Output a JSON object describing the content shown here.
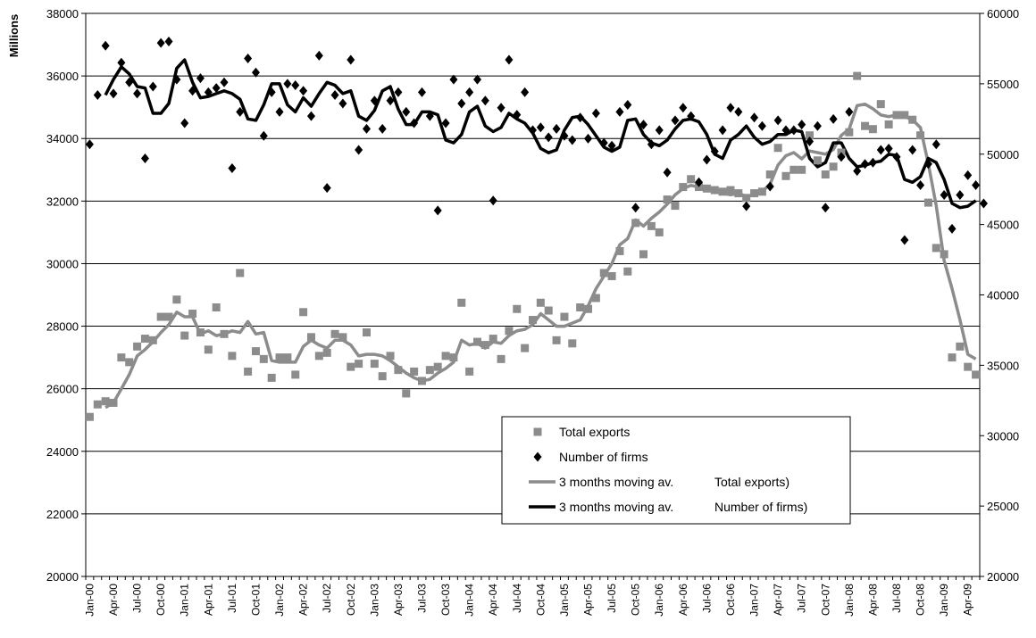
{
  "chart_data": {
    "type": "line",
    "ylabel": "Millions",
    "y_left_lim": [
      20000,
      38000
    ],
    "y_right_lim": [
      20000,
      60000
    ],
    "y_left_ticks": [
      "20000",
      "22000",
      "24000",
      "26000",
      "28000",
      "30000",
      "32000",
      "34000",
      "36000",
      "38000"
    ],
    "y_right_ticks": [
      "20000",
      "25000",
      "30000",
      "35000",
      "40000",
      "45000",
      "50000",
      "55000",
      "60000"
    ],
    "grid": true,
    "legend_position": "center-right inside plot",
    "x_tick_labels": [
      "Jan-00",
      "Apr-00",
      "Jul-00",
      "Oct-00",
      "Jan-01",
      "Apr-01",
      "Jul-01",
      "Oct-01",
      "Jan-02",
      "Apr-02",
      "Jul-02",
      "Oct-02",
      "Jan-03",
      "Apr-03",
      "Jul-03",
      "Oct-03",
      "Jan-04",
      "Apr-04",
      "Jul-04",
      "Oct-04",
      "Jan-05",
      "Apr-05",
      "Jul-05",
      "Oct-05",
      "Jan-06",
      "Apr-06",
      "Jul-06",
      "Oct-06",
      "Jan-07",
      "Apr-07",
      "Jul-07",
      "Oct-07",
      "Jan-08",
      "Apr-08",
      "Jul-08",
      "Oct-08",
      "Jan-09",
      "Apr-09"
    ],
    "series": [
      {
        "name": "Total exports",
        "type": "scatter",
        "axis": "left",
        "marker": "square",
        "color": "#8c8c8c",
        "values": [
          25100,
          25500,
          25600,
          25550,
          27000,
          26850,
          27350,
          27600,
          27550,
          28300,
          28300,
          28850,
          27700,
          28400,
          27800,
          27250,
          28600,
          27750,
          27050,
          29700,
          26550,
          27200,
          26950,
          26350,
          27000,
          27000,
          26450,
          28450,
          27650,
          27050,
          27150,
          27750,
          27650,
          26700,
          26800,
          27800,
          26800,
          26400,
          27050,
          26600,
          25850,
          26550,
          26250,
          26600,
          26700,
          27050,
          27000,
          28750,
          26550,
          27500,
          27400,
          27600,
          26950,
          27850,
          28550,
          27300,
          28200,
          28750,
          28500,
          27550,
          28300,
          27450,
          28600,
          28550,
          28900,
          29700,
          29600,
          30400,
          29750,
          31300,
          30300,
          31200,
          31000,
          32050,
          31850,
          32450,
          32700,
          32450,
          32400,
          32350,
          32300,
          32350,
          32250,
          32100,
          32250,
          32300,
          32850,
          33700,
          32800,
          33000,
          33000,
          34100,
          33300,
          32850,
          33100,
          33550,
          34200,
          36000,
          34400,
          34300,
          35100,
          34450,
          34750,
          34750,
          34600,
          34100,
          31950,
          30500,
          30300,
          27000,
          27350,
          26700,
          26450
        ]
      },
      {
        "name": "Number of firms",
        "type": "scatter",
        "axis": "right",
        "marker": "diamond",
        "color": "#000000",
        "values": [
          50700,
          54200,
          57700,
          54300,
          56500,
          55100,
          54300,
          49700,
          54800,
          57900,
          58000,
          55300,
          52200,
          54500,
          55400,
          54400,
          54700,
          55100,
          49000,
          53000,
          56800,
          55800,
          51300,
          54400,
          53000,
          55000,
          54900,
          54500,
          52700,
          57000,
          47600,
          54200,
          53600,
          56700,
          50300,
          51800,
          53800,
          51800,
          53800,
          54400,
          53000,
          52200,
          54400,
          52700,
          46000,
          52200,
          55300,
          53600,
          54400,
          55300,
          53800,
          46700,
          53300,
          56700,
          52800,
          54400,
          51700,
          51900,
          51200,
          51800,
          51300,
          51000,
          52600,
          51100,
          52900,
          50800,
          50600,
          53000,
          53500,
          46200,
          52100,
          50700,
          51700,
          48700,
          52400,
          53300,
          52700,
          48000,
          49600,
          50200,
          51700,
          53300,
          53000,
          46300,
          52600,
          52000,
          47700,
          52400,
          51700,
          51700,
          52100,
          50900,
          52000,
          46200,
          52500,
          49800,
          53000,
          48800,
          49300,
          49400,
          50300,
          50400,
          49800,
          43900,
          50300,
          47800,
          49300,
          50700,
          47100,
          44700,
          47100,
          48500,
          47800,
          46500
        ]
      },
      {
        "name": "3 months moving av.",
        "legend_suffix": "Total exports)",
        "type": "line",
        "axis": "left",
        "color": "#8c8c8c",
        "values": [
          null,
          null,
          25400,
          25550,
          26000,
          26450,
          27050,
          27250,
          27500,
          27800,
          28050,
          28450,
          28300,
          28300,
          27750,
          27850,
          27700,
          27750,
          27850,
          27800,
          28150,
          27750,
          27800,
          26900,
          26850,
          26850,
          26850,
          27350,
          27550,
          27400,
          27300,
          27550,
          27550,
          27400,
          27050,
          27100,
          27100,
          27050,
          26900,
          26700,
          26500,
          26350,
          26250,
          26300,
          26500,
          26650,
          26850,
          27550,
          27400,
          27450,
          27300,
          27500,
          27450,
          27700,
          27850,
          27900,
          28050,
          28400,
          28200,
          28000,
          28000,
          28100,
          28200,
          28650,
          29200,
          29600,
          30000,
          30600,
          30800,
          31400,
          31200,
          31450,
          31650,
          31900,
          32200,
          32400,
          32500,
          32450,
          32450,
          32350,
          32250,
          32200,
          32250,
          32150,
          32200,
          32300,
          32550,
          33150,
          33450,
          33550,
          33350,
          33600,
          33550,
          33500,
          33650,
          34100,
          34300,
          35050,
          35100,
          34950,
          34750,
          34700,
          34750,
          34700,
          34600,
          34350,
          33200,
          31850,
          30100,
          29200,
          28200,
          27100,
          26950
        ]
      },
      {
        "name": "3 months moving av.",
        "legend_suffix": "Number of firms)",
        "type": "line",
        "axis": "right",
        "color": "#000000",
        "values": [
          null,
          null,
          54200,
          55300,
          56200,
          55700,
          54800,
          54700,
          52900,
          52900,
          53600,
          56100,
          56700,
          55100,
          54000,
          54100,
          54300,
          54500,
          54300,
          53900,
          52500,
          52400,
          53500,
          55000,
          55000,
          53500,
          53000,
          54000,
          53400,
          54300,
          55100,
          54900,
          54300,
          54500,
          52700,
          52400,
          53100,
          54500,
          54800,
          53200,
          52100,
          52100,
          53000,
          53000,
          52800,
          51000,
          50800,
          51400,
          53000,
          53400,
          52000,
          51600,
          51900,
          52900,
          52500,
          52200,
          51500,
          50400,
          50100,
          50300,
          51700,
          52600,
          52700,
          52100,
          51300,
          50500,
          50200,
          50500,
          52400,
          52500,
          51400,
          50800,
          50600,
          51000,
          51800,
          52400,
          52500,
          52300,
          51400,
          50000,
          49700,
          51000,
          51400,
          52000,
          51200,
          50700,
          50900,
          51400,
          51400,
          51700,
          51600,
          49700,
          49100,
          49400,
          50800,
          50800,
          49700,
          49100,
          49200,
          49400,
          49500,
          50000,
          49900,
          48200,
          48000,
          48400,
          49700,
          49400,
          48200,
          46500,
          46200,
          46300,
          46700
        ]
      }
    ]
  }
}
